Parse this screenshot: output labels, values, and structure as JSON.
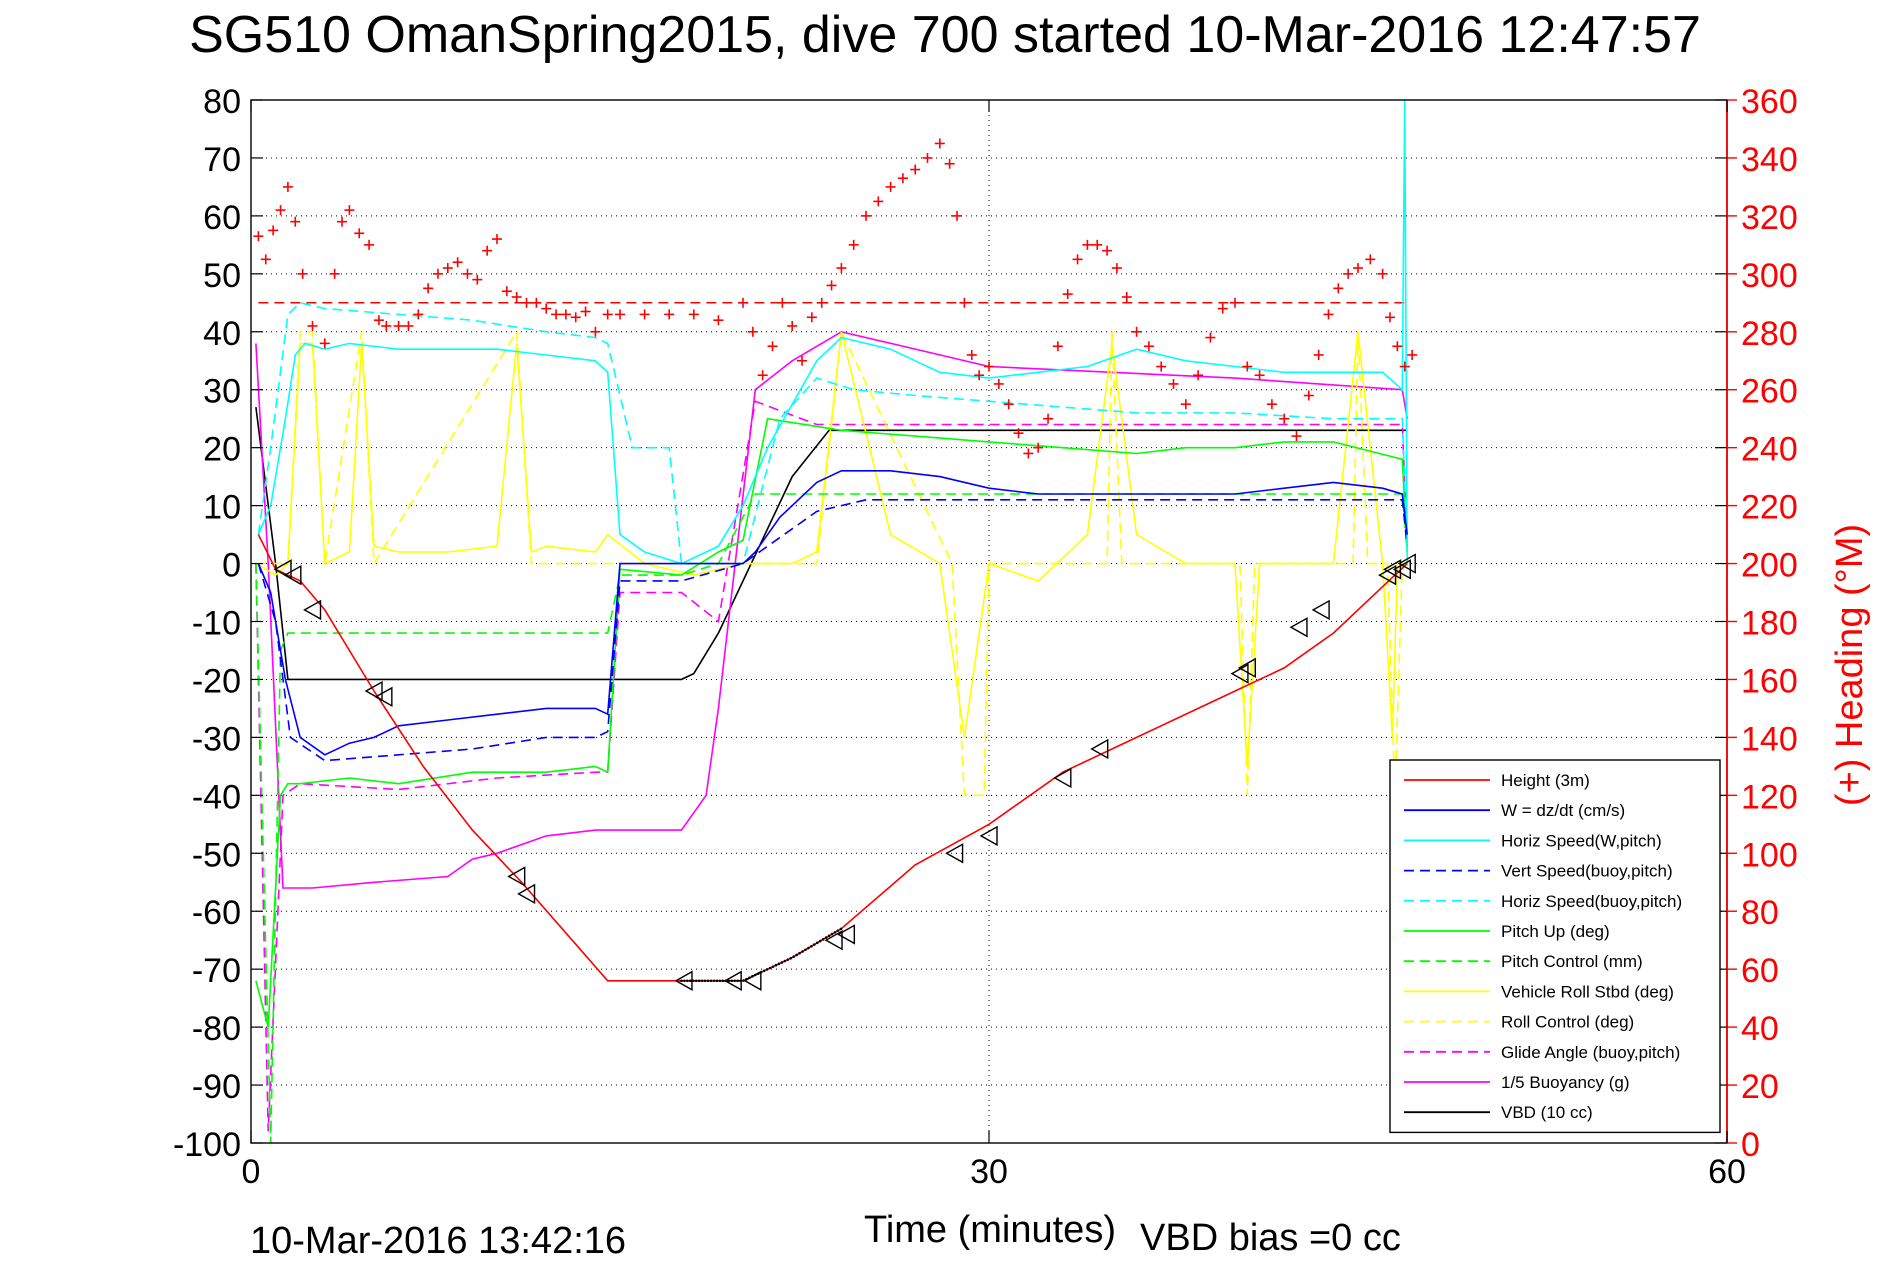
{
  "page": {
    "title": "SG510 OmanSpring2015, dive 700 started 10-Mar-2016 12:47:57",
    "timestamp": "10-Mar-2016 13:42:16",
    "vbd_bias": "VBD bias =0 cc"
  },
  "chart_data": {
    "type": "line",
    "title": "SG510 OmanSpring2015, dive 700 started 10-Mar-2016 12:47:57",
    "xlabel": "Time (minutes)",
    "ylabel": "",
    "y2label": "(+) Heading (°M)",
    "xlim": [
      0,
      60
    ],
    "ylim": [
      -100,
      80
    ],
    "y2lim": [
      0,
      360
    ],
    "xticks": [
      0,
      30,
      60
    ],
    "yticks": [
      -100,
      -90,
      -80,
      -70,
      -60,
      -50,
      -40,
      -30,
      -20,
      -10,
      0,
      10,
      20,
      30,
      40,
      50,
      60,
      70,
      80
    ],
    "y2ticks": [
      0,
      20,
      40,
      60,
      80,
      100,
      120,
      140,
      160,
      180,
      200,
      220,
      240,
      260,
      280,
      300,
      320,
      340,
      360
    ],
    "grid": true,
    "legend_position": "bottom-right",
    "colors": {
      "height": "#ff0000",
      "w": "#0000ff",
      "horiz_w": "#00ffff",
      "vert_buoy": "#0000ff",
      "horiz_buoy": "#00ffff",
      "pitch": "#00ff00",
      "pitch_ctrl": "#00ff00",
      "roll": "#ffff00",
      "roll_ctrl": "#ffff00",
      "glide": "#ff00ff",
      "buoyancy": "#ff00ff",
      "vbd": "#000000",
      "heading": "#ff0000"
    },
    "series": [
      {
        "name": "Height (3m)",
        "color": "#ff0000",
        "dash": "solid",
        "x": [
          0.3,
          1.0,
          1.5,
          2.0,
          3.0,
          5.0,
          7.0,
          9.0,
          11.0,
          14.5,
          17.0,
          18.5,
          20.0,
          22.0,
          24.0,
          27.0,
          30.0,
          33.0,
          36.0,
          39.0,
          42.0,
          44.0,
          46.5,
          47.0
        ],
        "y": [
          5,
          -1,
          -2,
          -3,
          -8,
          -22,
          -35,
          -46,
          -55,
          -72,
          -72,
          -72,
          -72,
          -68,
          -63,
          -52,
          -45,
          -36,
          -30,
          -24,
          -18,
          -12,
          -2,
          0
        ]
      },
      {
        "name": "W = dz/dt (cm/s)",
        "color": "#0000ff",
        "dash": "solid",
        "x": [
          0.3,
          0.8,
          1.4,
          2.0,
          3.0,
          4.0,
          5.0,
          6.0,
          8.0,
          10.0,
          12.0,
          14.0,
          14.5,
          15.0,
          17.5,
          20.0,
          20.5,
          21.5,
          23.0,
          24.0,
          26.0,
          28.0,
          30.0,
          32.0,
          34.0,
          36.0,
          38.0,
          40.0,
          42.0,
          44.0,
          46.0,
          46.8,
          47.0
        ],
        "y": [
          0,
          -5,
          -20,
          -30,
          -33,
          -31,
          -30,
          -28,
          -27,
          -26,
          -25,
          -25,
          -26,
          0,
          0,
          0,
          2,
          8,
          14,
          16,
          16,
          15,
          13,
          12,
          12,
          12,
          12,
          12,
          13,
          14,
          13,
          12,
          5
        ]
      },
      {
        "name": "Horiz Speed(W,pitch)",
        "color": "#00ffff",
        "dash": "solid",
        "x": [
          0.3,
          0.8,
          1.4,
          1.8,
          2.2,
          3.0,
          4.0,
          6.0,
          8.0,
          10.0,
          12.0,
          14.0,
          14.5,
          15.0,
          16.0,
          17.5,
          19.0,
          20.0,
          21.0,
          23.0,
          24.0,
          26.0,
          28.0,
          30.0,
          32.0,
          34.0,
          36.0,
          38.0,
          40.0,
          42.0,
          44.0,
          46.0,
          46.8,
          46.9,
          47.0
        ],
        "y": [
          5,
          10,
          25,
          36,
          38,
          37,
          38,
          37,
          37,
          37,
          36,
          35,
          33,
          5,
          2,
          0,
          3,
          10,
          20,
          35,
          39,
          37,
          33,
          32,
          33,
          34,
          37,
          35,
          34,
          33,
          33,
          33,
          30,
          80,
          0
        ]
      },
      {
        "name": "Vert Speed(buoy,pitch)",
        "color": "#0000ff",
        "dash": "dashed",
        "x": [
          0.3,
          1.0,
          1.6,
          3.0,
          6.0,
          9.0,
          12.0,
          14.0,
          14.5,
          15.0,
          17.5,
          20.0,
          21.0,
          23.0,
          25.0,
          28.0,
          30.0,
          33.0,
          36.0,
          40.0,
          44.0,
          46.8,
          47.0
        ],
        "y": [
          0,
          -10,
          -30,
          -34,
          -33,
          -32,
          -30,
          -30,
          -29,
          -3,
          -3,
          0,
          3,
          9,
          11,
          11,
          11,
          11,
          11,
          11,
          11,
          11,
          3
        ]
      },
      {
        "name": "Horiz Speed(buoy,pitch)",
        "color": "#00ffff",
        "dash": "dashed",
        "x": [
          0.3,
          0.8,
          1.5,
          2.0,
          3.0,
          6.0,
          9.0,
          12.0,
          14.0,
          14.5,
          15.5,
          17.0,
          17.5,
          20.0,
          21.5,
          23.0,
          24.5,
          27.0,
          30.0,
          33.0,
          36.0,
          40.0,
          44.0,
          46.8,
          47.0
        ],
        "y": [
          5,
          20,
          43,
          45,
          44,
          43,
          42,
          40,
          39,
          38,
          20,
          20,
          0,
          0,
          25,
          32,
          30,
          29,
          28,
          27,
          26,
          26,
          25,
          25,
          3
        ]
      },
      {
        "name": "Pitch Up (deg)",
        "color": "#00ff00",
        "dash": "solid",
        "x": [
          0.2,
          0.7,
          1.2,
          1.5,
          2.0,
          4.0,
          6.0,
          9.0,
          12.0,
          14.0,
          14.5,
          15.0,
          17.5,
          19.0,
          20.0,
          21.0,
          24.0,
          27.0,
          30.0,
          33.0,
          36.0,
          38.0,
          40.0,
          42.0,
          44.0,
          46.8,
          47.0
        ],
        "y": [
          -72,
          -80,
          -40,
          -38,
          -38,
          -37,
          -38,
          -36,
          -36,
          -35,
          -36,
          -1,
          -2,
          2,
          4,
          25,
          23,
          22,
          21,
          20,
          19,
          20,
          20,
          21,
          21,
          18,
          2
        ]
      },
      {
        "name": "Pitch Control (mm)",
        "color": "#00ff00",
        "dash": "dashed",
        "x": [
          0.2,
          0.8,
          1.2,
          1.5,
          2.0,
          6.0,
          10.0,
          14.0,
          14.5,
          15.0,
          17.5,
          19.0,
          20.5,
          23.0,
          30.0,
          36.0,
          40.0,
          44.0,
          46.8,
          47.0
        ],
        "y": [
          0,
          -100,
          -15,
          -12,
          -12,
          -12,
          -12,
          -12,
          -12,
          -2,
          -2,
          0,
          12,
          12,
          12,
          12,
          12,
          12,
          12,
          2
        ]
      },
      {
        "name": "Vehicle Roll Stbd (deg)",
        "color": "#ffff00",
        "dash": "solid",
        "x": [
          0.2,
          1.0,
          1.5,
          2.0,
          2.5,
          3.0,
          4.0,
          4.5,
          5.0,
          6.0,
          8.0,
          10.0,
          10.8,
          11.4,
          12.0,
          14.0,
          14.5,
          16.0,
          18.0,
          20.0,
          22.0,
          23.0,
          24.0,
          26.0,
          28.0,
          29.0,
          30.0,
          32.0,
          34.0,
          35.0,
          36.0,
          38.0,
          40.0,
          40.5,
          41.0,
          42.0,
          44.0,
          45.0,
          46.0,
          46.4,
          46.6,
          47.0
        ],
        "y": [
          0,
          -2,
          0,
          38,
          38,
          0,
          2,
          38,
          3,
          2,
          2,
          3,
          38,
          2,
          3,
          2,
          5,
          0,
          -2,
          0,
          0,
          2,
          40,
          5,
          0,
          -30,
          0,
          -3,
          5,
          38,
          5,
          0,
          0,
          -35,
          0,
          0,
          0,
          40,
          0,
          -30,
          0,
          0
        ]
      },
      {
        "name": "Roll Control (deg)",
        "color": "#ffff00",
        "dash": "dashed",
        "x": [
          0.2,
          1.5,
          2.0,
          2.5,
          3.0,
          4.5,
          5.0,
          10.8,
          11.4,
          14.5,
          23.0,
          24.0,
          28.5,
          29.0,
          29.8,
          30.0,
          34.8,
          35.0,
          35.4,
          40.2,
          40.5,
          40.8,
          44.8,
          45.0,
          45.4,
          46.2,
          46.5,
          46.8,
          47.0
        ],
        "y": [
          0,
          0,
          40,
          40,
          0,
          40,
          0,
          40,
          0,
          0,
          0,
          40,
          0,
          -40,
          -40,
          0,
          0,
          40,
          0,
          0,
          -40,
          0,
          0,
          40,
          0,
          0,
          -40,
          0,
          0
        ]
      },
      {
        "name": "Glide Angle (buoy,pitch)",
        "color": "#ff00ff",
        "dash": "dashed",
        "x": [
          0.2,
          0.7,
          1.3,
          2.0,
          6.0,
          10.0,
          14.0,
          14.5,
          15.0,
          17.5,
          19.0,
          20.5,
          23.0,
          30.0,
          36.0,
          40.0,
          44.0,
          46.8,
          47.0
        ],
        "y": [
          0,
          -98,
          -40,
          -38,
          -39,
          -37,
          -36,
          -36,
          -5,
          -5,
          -10,
          28,
          24,
          24,
          24,
          24,
          24,
          24,
          3
        ]
      },
      {
        "name": "1/5 Buoyancy (g)",
        "color": "#ff00ff",
        "dash": "solid",
        "x": [
          0.2,
          0.7,
          1.3,
          1.7,
          2.5,
          5.0,
          8.0,
          9.0,
          10.0,
          12.0,
          14.0,
          17.5,
          18.5,
          19.0,
          20.5,
          22.0,
          24.0,
          30.0,
          40.0,
          46.8,
          47.0
        ],
        "y": [
          38,
          0,
          -56,
          -56,
          -56,
          -55,
          -54,
          -51,
          -50,
          -47,
          -46,
          -46,
          -40,
          -25,
          30,
          35,
          40,
          34,
          32,
          30,
          25
        ]
      },
      {
        "name": "VBD (10 cc)",
        "color": "#000000",
        "dash": "solid",
        "x": [
          0.2,
          1.0,
          1.5,
          2.0,
          10.0,
          17.5,
          18.0,
          19.0,
          22.0,
          23.5,
          24.0,
          30.0,
          40.0,
          46.8,
          47.0
        ],
        "y": [
          27,
          0,
          -20,
          -20,
          -20,
          -20,
          -19,
          -12,
          15,
          23,
          23,
          23,
          23,
          23,
          23
        ]
      }
    ],
    "heading_series": {
      "name": "(+) Heading",
      "axis": "right",
      "reference_value": 290,
      "x": [
        0.3,
        0.6,
        0.9,
        1.2,
        1.5,
        1.8,
        2.1,
        2.5,
        3.0,
        3.4,
        3.7,
        4.0,
        4.4,
        4.8,
        5.2,
        5.5,
        6.0,
        6.4,
        6.8,
        7.2,
        7.6,
        8.0,
        8.4,
        8.8,
        9.2,
        9.6,
        10.0,
        10.4,
        10.8,
        11.2,
        11.6,
        12.0,
        12.4,
        12.8,
        13.2,
        13.6,
        14.0,
        14.5,
        15.0,
        16.0,
        17.0,
        18.0,
        19.0,
        20.0,
        20.4,
        20.8,
        21.2,
        21.6,
        22.0,
        22.4,
        22.8,
        23.2,
        23.6,
        24.0,
        24.5,
        25.0,
        25.5,
        26.0,
        26.5,
        27.0,
        27.5,
        28.0,
        28.4,
        28.7,
        29.0,
        29.3,
        29.6,
        30.0,
        30.4,
        30.8,
        31.2,
        31.6,
        32.0,
        32.4,
        32.8,
        33.2,
        33.6,
        34.0,
        34.4,
        34.8,
        35.2,
        35.6,
        36.0,
        36.5,
        37.0,
        37.5,
        38.0,
        38.5,
        39.0,
        39.5,
        40.0,
        40.5,
        41.0,
        41.5,
        42.0,
        42.5,
        43.0,
        43.4,
        43.8,
        44.2,
        44.6,
        45.0,
        45.5,
        46.0,
        46.3,
        46.6,
        46.9,
        47.2
      ],
      "y": [
        313,
        305,
        315,
        322,
        330,
        318,
        300,
        282,
        276,
        300,
        318,
        322,
        314,
        310,
        284,
        282,
        282,
        282,
        286,
        295,
        300,
        302,
        304,
        300,
        298,
        308,
        312,
        294,
        292,
        290,
        290,
        288,
        286,
        286,
        285,
        287,
        280,
        286,
        286,
        286,
        286,
        286,
        284,
        290,
        280,
        265,
        275,
        290,
        282,
        270,
        285,
        290,
        296,
        302,
        310,
        320,
        325,
        330,
        333,
        336,
        340,
        345,
        338,
        320,
        290,
        272,
        265,
        268,
        262,
        255,
        245,
        238,
        240,
        250,
        275,
        293,
        305,
        310,
        310,
        308,
        302,
        292,
        280,
        275,
        268,
        262,
        255,
        265,
        278,
        288,
        290,
        268,
        265,
        255,
        250,
        244,
        258,
        272,
        286,
        295,
        300,
        302,
        305,
        300,
        285,
        275,
        268,
        272
      ]
    },
    "markers": {
      "name": "triangle markers",
      "x": [
        1.3,
        1.7,
        2.5,
        5.0,
        5.4,
        10.8,
        11.2,
        17.6,
        19.6,
        20.4,
        23.7,
        24.2,
        28.6,
        30.0,
        33.0,
        34.5,
        40.2,
        40.5,
        42.6,
        43.5,
        46.2,
        46.4,
        46.8,
        47.0
      ],
      "y": [
        -1,
        -2,
        -8,
        -22,
        -23,
        -54,
        -57,
        -72,
        -72,
        -72,
        -65,
        -64,
        -50,
        -47,
        -37,
        -32,
        -19,
        -18,
        -11,
        -8,
        -2,
        -1,
        -1,
        0
      ]
    },
    "descent_tick_series": {
      "x_start": 17.5,
      "x_end": 24.0
    },
    "legend": [
      {
        "label": "Height (3m)",
        "color": "#ff0000",
        "dash": "solid"
      },
      {
        "label": "W = dz/dt (cm/s)",
        "color": "#0000ff",
        "dash": "solid"
      },
      {
        "label": "Horiz Speed(W,pitch)",
        "color": "#00ffff",
        "dash": "solid"
      },
      {
        "label": "Vert Speed(buoy,pitch)",
        "color": "#0000ff",
        "dash": "dashed"
      },
      {
        "label": "Horiz Speed(buoy,pitch)",
        "color": "#00ffff",
        "dash": "dashed"
      },
      {
        "label": "Pitch Up (deg)",
        "color": "#00ff00",
        "dash": "solid"
      },
      {
        "label": "Pitch Control (mm)",
        "color": "#00ff00",
        "dash": "dashed"
      },
      {
        "label": "Vehicle Roll Stbd (deg)",
        "color": "#ffff00",
        "dash": "solid"
      },
      {
        "label": "Roll Control (deg)",
        "color": "#ffff00",
        "dash": "dashed"
      },
      {
        "label": "Glide Angle (buoy,pitch)",
        "color": "#ff00ff",
        "dash": "dashed"
      },
      {
        "label": "1/5 Buoyancy (g)",
        "color": "#ff00ff",
        "dash": "solid"
      },
      {
        "label": "VBD (10 cc)",
        "color": "#000000",
        "dash": "solid"
      }
    ]
  }
}
